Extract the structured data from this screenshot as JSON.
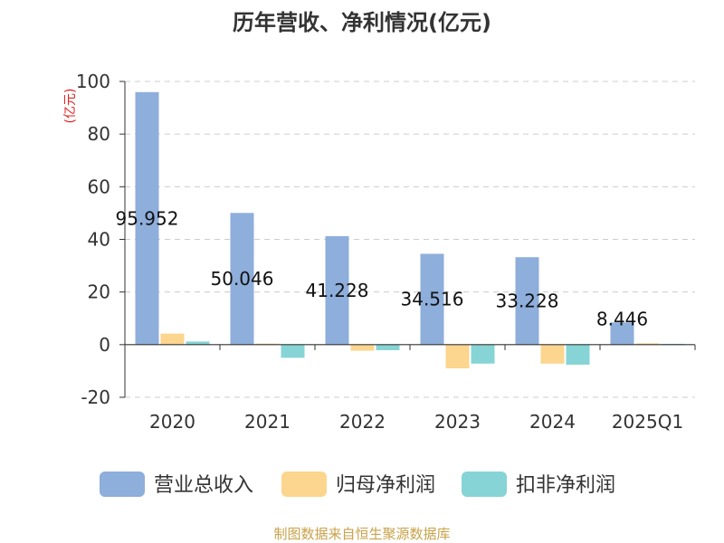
{
  "chart_data": {
    "type": "bar",
    "title": "历年营收、净利情况(亿元)",
    "ylabel": "(亿元)",
    "categories": [
      "2020",
      "2021",
      "2022",
      "2023",
      "2024",
      "2025Q1"
    ],
    "series": [
      {
        "name": "营业总收入",
        "color": "#8eaedb",
        "values": [
          95.952,
          50.046,
          41.228,
          34.516,
          33.228,
          8.446
        ]
      },
      {
        "name": "归母净利润",
        "color": "#fcd58e",
        "values": [
          4.2,
          0.4,
          -2.3,
          -9.0,
          -7.2,
          0.5
        ]
      },
      {
        "name": "扣非净利润",
        "color": "#86d4d6",
        "values": [
          1.2,
          -5.0,
          -2.1,
          -7.2,
          -7.6,
          0.3
        ]
      }
    ],
    "data_labels": [
      "95.952",
      "50.046",
      "41.228",
      "34.516",
      "33.228",
      "8.446"
    ],
    "ylim": [
      -20,
      100
    ],
    "yticks": [
      -20,
      0,
      20,
      40,
      60,
      80,
      100
    ],
    "grid": true,
    "legend_position": "bottom"
  },
  "source": "制图数据来自恒生聚源数据库"
}
